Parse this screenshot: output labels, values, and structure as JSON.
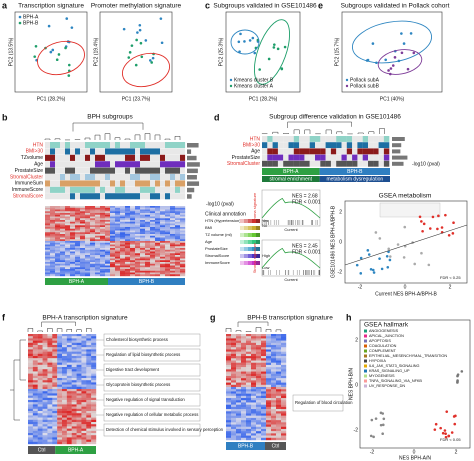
{
  "a": {
    "label": "a",
    "titles": [
      "Transcription signature",
      "Promoter methylation signature"
    ],
    "legend": [
      "BPH-A",
      "BPH-B"
    ],
    "x_labels": [
      "PC1 (28.2%)",
      "PC1 (23.7%)"
    ],
    "y_labels": [
      "PC2 (13.5%)",
      "PC2 (19.4%)"
    ]
  },
  "c": {
    "label": "c",
    "title": "Subgroups validated in GSE101486",
    "x_label": "PC1 (28.2%)",
    "y_label": "PC2 (25.3%)",
    "legend": [
      "Kmeans cluster B",
      "Kmeans cluster A"
    ]
  },
  "e": {
    "label": "e",
    "title": "Subgroups validated in Pollack cohort",
    "x_label": "PC1 (40%)",
    "y_label": "PC2 (15.7%)",
    "legend": [
      "Pollack subA",
      "Pollack subB"
    ]
  },
  "b": {
    "label": "b",
    "title": "BPH subgroups",
    "rows": [
      {
        "text": "HTN",
        "color": "#e0302a"
      },
      {
        "text": "BMI>30",
        "color": "#e0302a"
      },
      {
        "text": "TZvolume",
        "color": "#111111"
      },
      {
        "text": "Age",
        "color": "#111111"
      },
      {
        "text": "ProstateSize",
        "color": "#111111"
      },
      {
        "text": "StromalCluster",
        "color": "#e0302a"
      },
      {
        "text": "ImmuneSum",
        "color": "#111111"
      },
      {
        "text": "ImmuneScore",
        "color": "#111111"
      },
      {
        "text": "StromalScore",
        "color": "#e0302a"
      }
    ],
    "pval_label": "-log10 (pval)",
    "legend_title": "Clinical annotation",
    "legend_items": [
      "HTN (Hypertension)",
      "BMI",
      "TZ volume (ml)",
      "Age",
      "ProstateSize",
      "StromalScore",
      "ImmuneScore"
    ],
    "legend_levels": [
      "Yes",
      "No",
      "High",
      "Low"
    ],
    "groups": [
      "BPH-A",
      "BPH-B"
    ]
  },
  "d": {
    "label": "d",
    "title": "Subgroup difference validation in GSE101486",
    "rows": [
      {
        "text": "HTN",
        "color": "#e0302a"
      },
      {
        "text": "BMI>30",
        "color": "#e0302a"
      },
      {
        "text": "Age",
        "color": "#111111"
      },
      {
        "text": "ProstateSize",
        "color": "#111111"
      },
      {
        "text": "StromalCluster",
        "color": "#e0302a"
      }
    ],
    "pval_label": "-log10 (pval)",
    "groups": [
      "BPH-A",
      "BPH-B"
    ],
    "group_notes": [
      "stromal enrichment",
      "metabolism dysregulation"
    ],
    "gsea": [
      {
        "nes": "NES = 2.68",
        "fdr": "FDR < 0.001",
        "signature": "Stroma signature",
        "axis": "Current"
      },
      {
        "nes": "NES = 2.45",
        "fdr": "FDR < 0.001",
        "signature": "Stroma signature",
        "axis": "Current"
      }
    ],
    "scatter": {
      "title": "GSEA metabolism",
      "x_label": "Current NES BPH-A/BPH-B",
      "y_label": "GSE101486 NES BPH-A/BPH-B",
      "xticks": [
        "-2",
        "0",
        "2"
      ],
      "yticks": [
        "-2",
        "0",
        "2"
      ],
      "legend": "FDR < 0.25"
    }
  },
  "f": {
    "label": "f",
    "title": "BPH-A transcription signature",
    "terms": [
      "Cholesterol biosynthetic process",
      "Regulation of lipid biosynthetic process",
      "Digestive tract development",
      "Glycoprotein biosynthetic process",
      "Negative regulation of signal transduction",
      "Negative regulation of cellular metabolic process",
      "Detection of chemical stimulus involved in sensory perception"
    ],
    "groups": [
      "Ctrl",
      "BPH-A"
    ]
  },
  "g": {
    "label": "g",
    "title": "BPH-B transcription signature",
    "terms": [
      "Regulation of blood circulation"
    ],
    "groups": [
      "BPH-B",
      "Ctrl"
    ]
  },
  "h": {
    "label": "h",
    "title": "GSEA hallmark",
    "legend": [
      "ANGIOGENESIS",
      "APICAL_JUNCTION",
      "APOPTOSIS",
      "COAGULATION",
      "COMPLEMENT",
      "EPITHELIAL_MESENCHYMAL_TRANSITION",
      "HYPOXIA",
      "IL6_JAK_STAT3_SIGNALING",
      "KRAS_SIGNALING_UP",
      "MYOGENESIS",
      "TNFA_SIGNALING_VIA_NFKB",
      "UV_RESPONSE_DN"
    ],
    "fdr_legend": "FDR < 0.05",
    "x_label": "NES BPH-A/N",
    "y_label": "NES BPH-B/N",
    "xticks": [
      "-2",
      "0",
      "2"
    ],
    "yticks": [
      "-2",
      "0",
      "2"
    ]
  }
}
